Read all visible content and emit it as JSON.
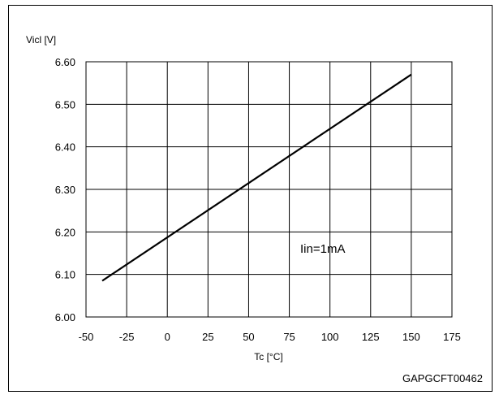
{
  "chart_data": {
    "type": "line",
    "ylabel": "Vicl [V]",
    "xlabel": "Tc [°C]",
    "xlim": [
      -50,
      175
    ],
    "ylim": [
      6.0,
      6.6
    ],
    "xticks": [
      "-50",
      "-25",
      "0",
      "25",
      "50",
      "75",
      "100",
      "125",
      "150",
      "175"
    ],
    "yticks": [
      "6.60",
      "6.50",
      "6.40",
      "6.30",
      "6.20",
      "6.10",
      "6.00"
    ],
    "grid": true,
    "series": [
      {
        "x": [
          -40,
          150
        ],
        "y": [
          6.085,
          6.57
        ]
      }
    ],
    "annotation": "Iin=1mA",
    "figure_code": "GAPGCFT00462"
  }
}
